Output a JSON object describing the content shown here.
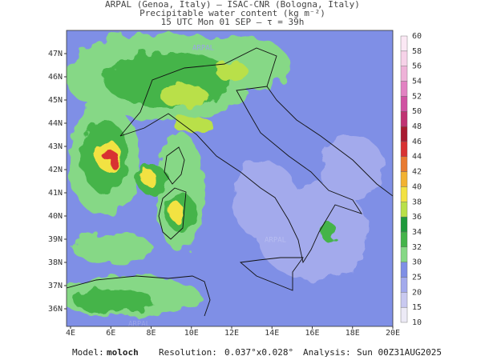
{
  "header": {
    "line1": "ARPAL (Genoa, Italy)  —  ISAC-CNR (Bologna, Italy)",
    "line2": "Precipitable water content (kg m⁻²)",
    "line3": "15 UTC Mon 01 SEP  —  τ = 39h"
  },
  "map": {
    "lat_labels": [
      "47N",
      "46N",
      "45N",
      "44N",
      "43N",
      "42N",
      "41N",
      "40N",
      "39N",
      "38N",
      "37N",
      "36N"
    ],
    "lon_labels": [
      "4E",
      "6E",
      "8E",
      "10E",
      "12E",
      "14E",
      "16E",
      "18E",
      "20E"
    ],
    "watermark": "ARPAL"
  },
  "colorbar": {
    "levels": [
      10,
      15,
      20,
      25,
      30,
      32,
      34,
      36,
      38,
      40,
      42,
      44,
      46,
      48,
      50,
      52,
      54,
      56,
      58,
      60
    ],
    "colors": [
      "#eceaf6",
      "#c9c9f0",
      "#a3aaec",
      "#7f8fe6",
      "#86d886",
      "#44b44a",
      "#1f9a3c",
      "#b9e048",
      "#f2e242",
      "#f2b232",
      "#e87a30",
      "#d83232",
      "#a81a30",
      "#c03272",
      "#d052a2",
      "#e282c2",
      "#eeb2d8",
      "#f6d2e8",
      "#fbe8f4"
    ]
  },
  "footer": {
    "model_label": "Model:",
    "model": "moloch",
    "resolution_label": "Resolution:",
    "resolution": "0.037°x0.028°",
    "analysis_label": "Analysis:",
    "analysis": "Sun 00Z31AUG2025"
  }
}
